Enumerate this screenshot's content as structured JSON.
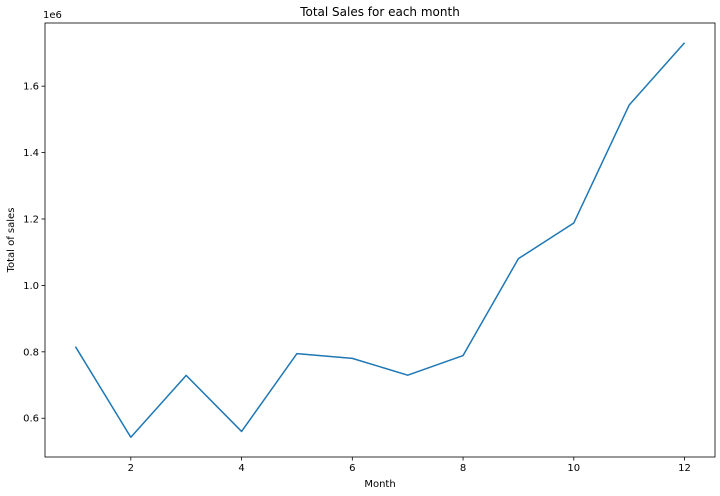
{
  "chart_data": {
    "type": "line",
    "title": "Total Sales for each month",
    "xlabel": "Month",
    "ylabel": "Total of sales",
    "y_offset_label": "1e6",
    "x": [
      1,
      2,
      3,
      4,
      5,
      6,
      7,
      8,
      9,
      10,
      11,
      12
    ],
    "series": [
      {
        "values": [
          0.8155,
          0.5427,
          0.729,
          0.5602,
          0.7947,
          0.7803,
          0.7296,
          0.7889,
          1.0805,
          1.1881,
          1.5432,
          1.7308
        ],
        "color": "#1f77b4"
      }
    ],
    "xlim": [
      0.45,
      12.55
    ],
    "ylim": [
      0.4833,
      1.7902
    ],
    "xticks": [
      2,
      4,
      6,
      8,
      10,
      12
    ],
    "xtick_labels": [
      "2",
      "4",
      "6",
      "8",
      "10",
      "12"
    ],
    "yticks": [
      0.6,
      0.8,
      1.0,
      1.2,
      1.4,
      1.6
    ],
    "ytick_labels": [
      "0.6",
      "0.8",
      "1.0",
      "1.2",
      "1.4",
      "1.6"
    ],
    "grid": false,
    "legend": "none"
  }
}
